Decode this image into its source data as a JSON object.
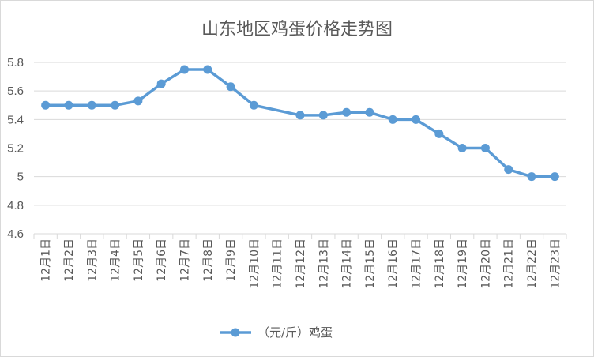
{
  "chart_data": {
    "type": "line",
    "title": "山东地区鸡蛋价格走势图",
    "categories": [
      "12月1日",
      "12月2日",
      "12月3日",
      "12月4日",
      "12月5日",
      "12月6日",
      "12月7日",
      "12月8日",
      "12月9日",
      "12月10日",
      "12月11日",
      "12月12日",
      "12月13日",
      "12月14日",
      "12月15日",
      "12月16日",
      "12月17日",
      "12月18日",
      "12月19日",
      "12月20日",
      "12月21日",
      "12月22日",
      "12月23日"
    ],
    "series": [
      {
        "name": "（元/斤）鸡蛋",
        "color": "#5b9bd5",
        "values": [
          5.5,
          5.5,
          5.5,
          5.5,
          5.53,
          5.65,
          5.75,
          5.75,
          5.63,
          5.5,
          null,
          5.43,
          5.43,
          5.45,
          5.45,
          5.4,
          5.4,
          5.3,
          5.2,
          5.2,
          5.05,
          5.0,
          5.0
        ]
      }
    ],
    "yticks": [
      "4.6",
      "4.8",
      "5",
      "5.2",
      "5.4",
      "5.6",
      "5.8"
    ],
    "ylim": [
      4.6,
      5.8
    ],
    "grid": true,
    "legend_position": "bottom"
  }
}
